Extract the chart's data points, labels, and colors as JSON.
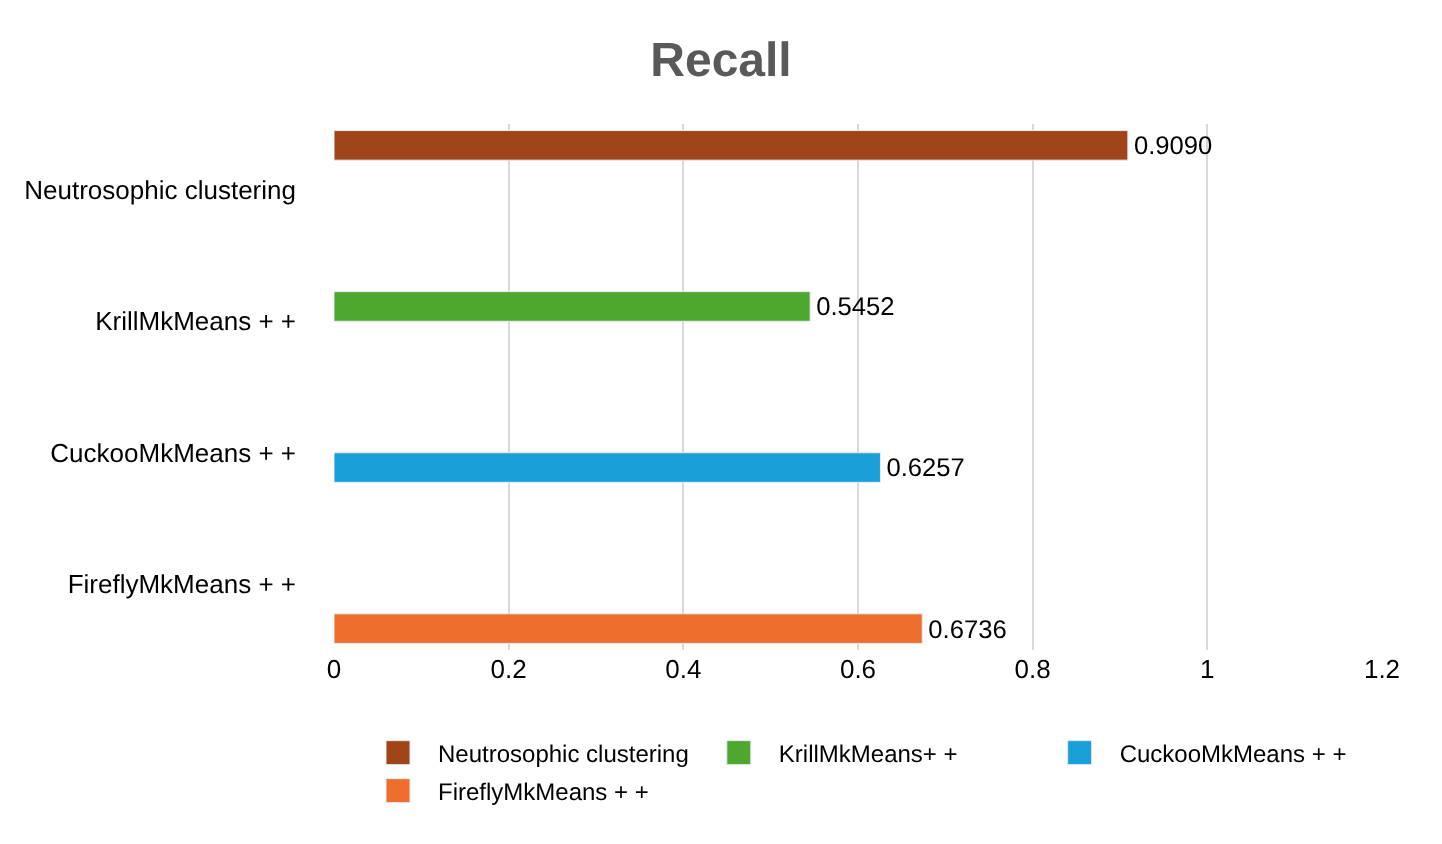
{
  "chart_data": {
    "type": "bar",
    "orientation": "horizontal",
    "title": "Recall",
    "categories": [
      "Neutrosophic clustering",
      "KrillMkMeans + +",
      "CuckooMkMeans + +",
      "FireflyMkMeans + +"
    ],
    "series": [
      {
        "name": "Neutrosophic clustering",
        "color": "#a0441a",
        "values": [
          0.909,
          null,
          null,
          null
        ],
        "value_labels": [
          "0.9090",
          null,
          null,
          null
        ]
      },
      {
        "name": "KrillMkMeans+ +",
        "color": "#4ea72e",
        "values": [
          null,
          0.5452,
          null,
          null
        ],
        "value_labels": [
          null,
          "0.5452",
          null,
          null
        ]
      },
      {
        "name": "CuckooMkMeans + +",
        "color": "#1a9fd8",
        "values": [
          null,
          null,
          0.6257,
          null
        ],
        "value_labels": [
          null,
          null,
          "0.6257",
          null
        ]
      },
      {
        "name": "FireflyMkMeans + +",
        "color": "#ee6f2d",
        "values": [
          null,
          null,
          null,
          0.6736
        ],
        "value_labels": [
          null,
          null,
          null,
          "0.6736"
        ]
      }
    ],
    "xlim": [
      0,
      1.2
    ],
    "xticks": [
      0,
      0.2,
      0.4,
      0.6,
      0.8,
      1,
      1.2
    ],
    "grid": "x",
    "legend": "bottom"
  }
}
